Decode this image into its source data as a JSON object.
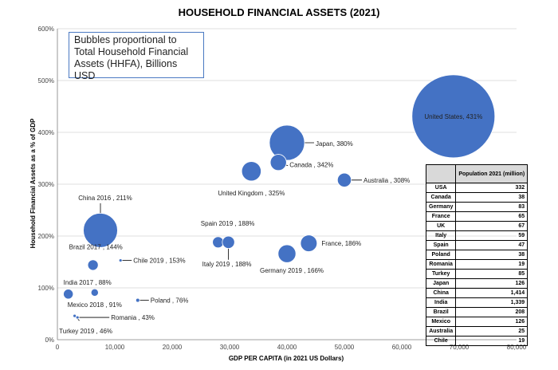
{
  "chart_data": {
    "type": "bubble",
    "title": "HOUSEHOLD FINANCIAL ASSETS (2021)",
    "xlabel": "GDP PER CAPITA (in 2021 US Dollars)",
    "ylabel": "Household Financial Assets as a % of GDP",
    "xlim": [
      0,
      80000
    ],
    "ylim": [
      0,
      600
    ],
    "x_ticks": [
      "0",
      "10,000",
      "20,000",
      "30,000",
      "40,000",
      "50,000",
      "60,000",
      "70,000",
      "80,000"
    ],
    "y_ticks": [
      "0%",
      "100%",
      "200%",
      "300%",
      "400%",
      "500%",
      "600%"
    ],
    "grid": "horizontal",
    "note": "Bubbles proportional to Total Household Financial Assets (HHFA), Billions USD",
    "points": [
      {
        "label": "United States, 431%",
        "x": 69000,
        "y": 431,
        "size": 1000
      },
      {
        "label": "Japan, 380%",
        "x": 40000,
        "y": 380,
        "size": 180
      },
      {
        "label": "Canada , 342%",
        "x": 38500,
        "y": 342,
        "size": 38
      },
      {
        "label": "United Kingdom , 325%",
        "x": 33800,
        "y": 325,
        "size": 55
      },
      {
        "label": "Australia , 308%",
        "x": 50000,
        "y": 308,
        "size": 28
      },
      {
        "label": "China 2016 , 211%",
        "x": 7500,
        "y": 211,
        "size": 170
      },
      {
        "label": "Spain 2019 , 188%",
        "x": 28000,
        "y": 188,
        "size": 18
      },
      {
        "label": "Italy 2019 , 188%",
        "x": 29800,
        "y": 188,
        "size": 22
      },
      {
        "label": "France, 186%",
        "x": 43800,
        "y": 186,
        "size": 40
      },
      {
        "label": "Germany 2019 , 166%",
        "x": 40000,
        "y": 166,
        "size": 46
      },
      {
        "label": "Brazil 2017 , 144%",
        "x": 6200,
        "y": 144,
        "size": 16
      },
      {
        "label": "Chile 2019 , 153%",
        "x": 11000,
        "y": 153,
        "size": 1.2
      },
      {
        "label": "India 2017 , 88%",
        "x": 1900,
        "y": 88,
        "size": 14
      },
      {
        "label": "Mexico 2018 , 91%",
        "x": 6500,
        "y": 91,
        "size": 8
      },
      {
        "label": "Poland , 76%",
        "x": 14000,
        "y": 76,
        "size": 2.2
      },
      {
        "label": "Romania , 43%",
        "x": 3500,
        "y": 43,
        "size": 0.6
      },
      {
        "label": "Turkey 2019 , 46%",
        "x": 3000,
        "y": 46,
        "size": 0.6
      }
    ]
  },
  "population_table": {
    "header": "Population 2021 (million)",
    "rows": [
      {
        "country": "USA",
        "value": "332"
      },
      {
        "country": "Canada",
        "value": "38"
      },
      {
        "country": "Germany",
        "value": "83"
      },
      {
        "country": "France",
        "value": "65"
      },
      {
        "country": "UK",
        "value": "67"
      },
      {
        "country": "Italy",
        "value": "59"
      },
      {
        "country": "Spain",
        "value": "47"
      },
      {
        "country": "Poland",
        "value": "38"
      },
      {
        "country": "Romania",
        "value": "19"
      },
      {
        "country": "Turkey",
        "value": "85"
      },
      {
        "country": "Japan",
        "value": "126"
      },
      {
        "country": "China",
        "value": "1,414"
      },
      {
        "country": "India",
        "value": "1,339"
      },
      {
        "country": "Brazil",
        "value": "208"
      },
      {
        "country": "Mexico",
        "value": "126"
      },
      {
        "country": "Australia",
        "value": "25"
      },
      {
        "country": "Chile",
        "value": "19"
      }
    ]
  }
}
